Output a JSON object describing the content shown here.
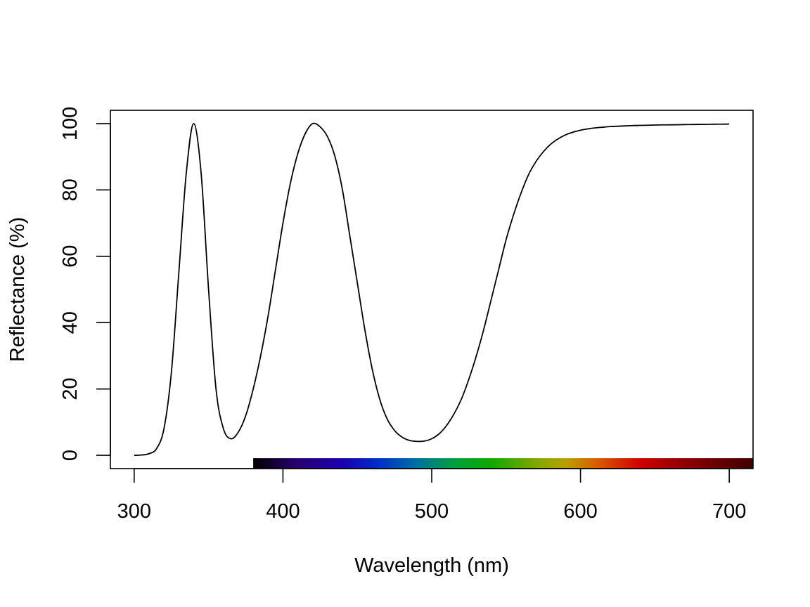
{
  "chart_data": {
    "type": "line",
    "title": "",
    "xlabel": "Wavelength (nm)",
    "ylabel": "Reflectance (%)",
    "xlim": [
      284,
      716
    ],
    "ylim": [
      -4,
      104
    ],
    "x_ticks": [
      300,
      400,
      500,
      600,
      700
    ],
    "y_ticks": [
      0,
      20,
      40,
      60,
      80,
      100
    ],
    "grid": false,
    "legend": "none",
    "line_color": "#000000",
    "spectrum_bar": {
      "x_start": 380,
      "x_end": 716,
      "stops": [
        {
          "x": 380,
          "color": "#000000"
        },
        {
          "x": 410,
          "color": "#2a0070"
        },
        {
          "x": 440,
          "color": "#1a00b0"
        },
        {
          "x": 465,
          "color": "#0030c8"
        },
        {
          "x": 490,
          "color": "#0070a0"
        },
        {
          "x": 515,
          "color": "#00a040"
        },
        {
          "x": 540,
          "color": "#10a800"
        },
        {
          "x": 570,
          "color": "#80a800"
        },
        {
          "x": 590,
          "color": "#b8a000"
        },
        {
          "x": 610,
          "color": "#d86000"
        },
        {
          "x": 640,
          "color": "#d00000"
        },
        {
          "x": 670,
          "color": "#900000"
        },
        {
          "x": 700,
          "color": "#5a0000"
        },
        {
          "x": 716,
          "color": "#400000"
        }
      ]
    },
    "series": [
      {
        "x": [
          300,
          305,
          310,
          315,
          320,
          325,
          330,
          335,
          340,
          345,
          350,
          355,
          360,
          365,
          370,
          375,
          380,
          385,
          390,
          395,
          400,
          405,
          410,
          415,
          420,
          425,
          430,
          435,
          440,
          445,
          450,
          455,
          460,
          465,
          470,
          475,
          480,
          485,
          490,
          495,
          500,
          505,
          510,
          515,
          520,
          525,
          530,
          535,
          540,
          545,
          550,
          555,
          560,
          565,
          570,
          575,
          580,
          585,
          590,
          595,
          600,
          605,
          610,
          615,
          620,
          625,
          630,
          635,
          640,
          645,
          650,
          655,
          660,
          665,
          670,
          675,
          680,
          685,
          690,
          695,
          700
        ],
        "y": [
          0,
          0.1,
          0.5,
          2,
          8,
          25,
          55,
          85,
          100,
          85,
          50,
          20,
          8,
          5,
          7,
          12,
          20,
          30,
          42,
          56,
          70,
          82,
          91,
          97,
          100,
          99,
          96,
          90,
          80,
          66,
          52,
          38,
          26,
          17,
          11,
          7.5,
          5.5,
          4.5,
          4.2,
          4.3,
          5,
          6.5,
          9,
          12.5,
          17,
          23,
          30,
          38,
          47,
          56,
          65,
          72.5,
          79,
          84.5,
          88.5,
          91.5,
          93.8,
          95.4,
          96.6,
          97.4,
          98,
          98.4,
          98.7,
          98.9,
          99.1,
          99.2,
          99.3,
          99.4,
          99.45,
          99.5,
          99.55,
          99.6,
          99.62,
          99.65,
          99.7,
          99.72,
          99.75,
          99.77,
          99.8,
          99.82,
          99.85
        ]
      }
    ]
  }
}
